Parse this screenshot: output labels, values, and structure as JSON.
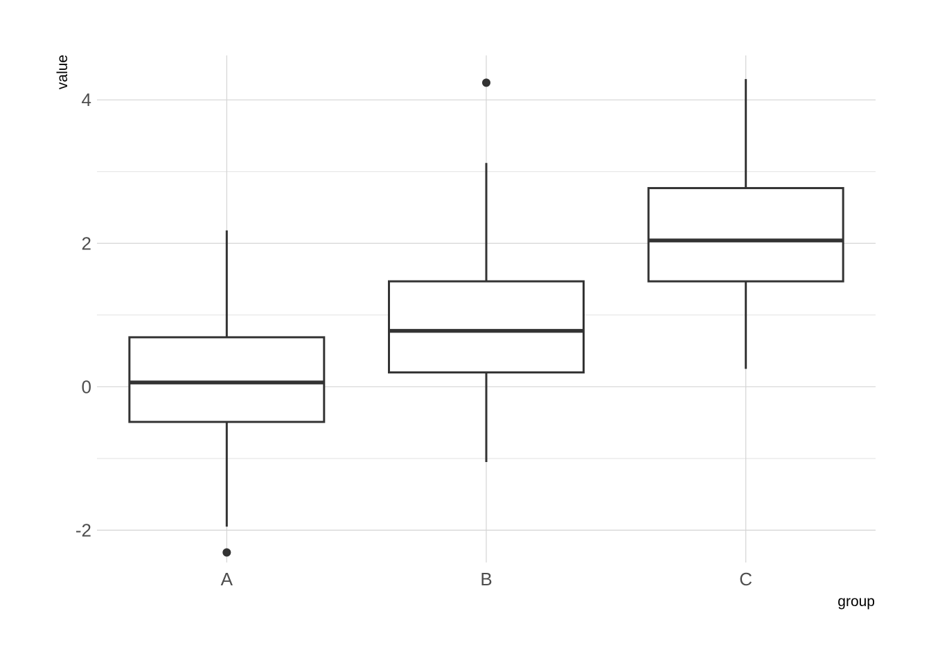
{
  "chart_data": {
    "type": "boxplot",
    "xlabel": "group",
    "ylabel": "value",
    "ylim": [
      -2.45,
      4.62
    ],
    "y_ticks": [
      -2,
      0,
      2,
      4
    ],
    "y_tick_labels": [
      "-2",
      "0",
      "2",
      "4"
    ],
    "y_minor_ticks": [
      -1,
      1,
      3
    ],
    "grid": true,
    "categories": [
      "A",
      "B",
      "C"
    ],
    "boxes": [
      {
        "category": "A",
        "whisker_low": -1.95,
        "q1": -0.49,
        "median": 0.06,
        "q3": 0.69,
        "whisker_high": 2.18,
        "outliers": [
          -2.31
        ]
      },
      {
        "category": "B",
        "whisker_low": -1.05,
        "q1": 0.2,
        "median": 0.78,
        "q3": 1.47,
        "whisker_high": 3.12,
        "outliers": [
          4.24
        ]
      },
      {
        "category": "C",
        "whisker_low": 0.25,
        "q1": 1.47,
        "median": 2.04,
        "q3": 2.77,
        "whisker_high": 4.29,
        "outliers": []
      }
    ],
    "colors": {
      "line": "#333333",
      "fill": "#ffffff",
      "grid": "#d4d4d4",
      "tick_text": "#4d4d4d"
    }
  }
}
